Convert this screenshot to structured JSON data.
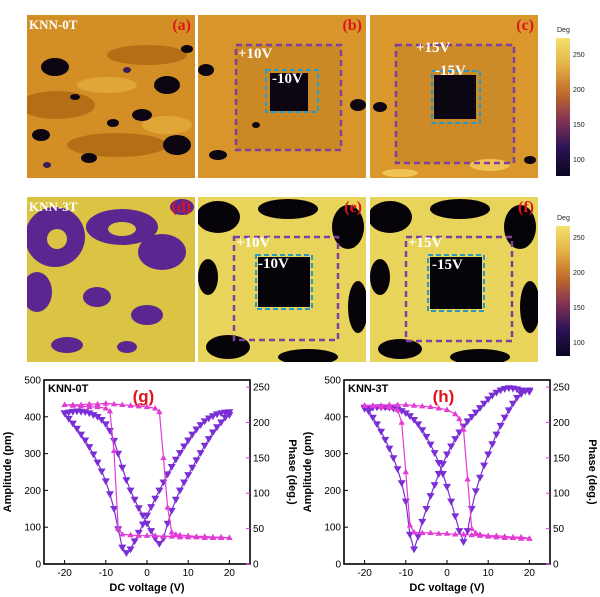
{
  "maps": {
    "rows": [
      {
        "sample": "KNN-0T",
        "panels": [
          {
            "label": "(a)"
          },
          {
            "label": "(b)",
            "outer": "+10V",
            "inner": "-10V"
          },
          {
            "label": "(c)",
            "outer": "+15V",
            "inner": "-15V"
          }
        ]
      },
      {
        "sample": "KNN-3T",
        "panels": [
          {
            "label": "(d)"
          },
          {
            "label": "(e)",
            "outer": "+10V",
            "inner": "-10V"
          },
          {
            "label": "(f)",
            "outer": "+15V",
            "inner": "-15V"
          }
        ]
      }
    ],
    "colorbar": {
      "unit": "Deg",
      "ticks": [
        "250",
        "200",
        "150",
        "100"
      ]
    }
  },
  "chart_data": [
    {
      "type": "line",
      "label": "(g)",
      "annotation": "KNN-0T",
      "xlabel": "DC voltage (V)",
      "ylabel": "Amplitude (pm)",
      "y2label": "Phase (deg.)",
      "xlim": [
        -25,
        25
      ],
      "ylim": [
        0,
        500
      ],
      "y2lim": [
        0,
        260
      ],
      "xticks": [
        "-20",
        "-10",
        "0",
        "10",
        "20"
      ],
      "yticks": [
        "0",
        "100",
        "200",
        "300",
        "400",
        "500"
      ],
      "y2ticks": [
        "0",
        "50",
        "100",
        "150",
        "200",
        "250"
      ],
      "colors": {
        "amplitude": "#7a2fd6",
        "phase": "#e23bd6",
        "label": "#e0141c"
      },
      "series": [
        {
          "axis": "left",
          "marker": "triangle-down",
          "x": [
            -20,
            -19,
            -18,
            -17,
            -16,
            -15,
            -14,
            -13,
            -12,
            -11,
            -10,
            -9,
            -8,
            -7,
            -6,
            -5,
            -4,
            -3,
            -2,
            -1,
            0,
            1,
            2,
            3,
            4,
            5,
            6,
            7,
            8,
            9,
            10,
            11,
            12,
            13,
            14,
            15,
            16,
            17,
            18,
            19,
            20,
            20,
            19,
            18,
            17,
            16,
            15,
            14,
            13,
            12,
            11,
            10,
            9,
            8,
            7,
            6,
            5,
            4,
            3,
            2,
            1,
            0,
            -1,
            -2,
            -3,
            -4,
            -5,
            -6,
            -7,
            -8,
            -9,
            -10,
            -11,
            -12,
            -13,
            -14,
            -15,
            -16,
            -17,
            -18,
            -19,
            -20
          ],
          "y": [
            410,
            395,
            382,
            368,
            352,
            336,
            318,
            298,
            276,
            252,
            225,
            190,
            150,
            95,
            45,
            30,
            40,
            62,
            85,
            108,
            132,
            155,
            178,
            200,
            222,
            244,
            264,
            284,
            302,
            320,
            336,
            352,
            366,
            378,
            388,
            396,
            402,
            407,
            410,
            412,
            413,
            405,
            398,
            385,
            372,
            358,
            340,
            322,
            302,
            282,
            262,
            242,
            222,
            200,
            175,
            145,
            110,
            70,
            55,
            70,
            90,
            110,
            132,
            152,
            175,
            200,
            228,
            262,
            300,
            335,
            362,
            380,
            392,
            400,
            405,
            410,
            413,
            414,
            415,
            414,
            412,
            410
          ]
        },
        {
          "axis": "right",
          "marker": "triangle-up",
          "x": [
            -20,
            -18,
            -16,
            -14,
            -12,
            -10,
            -9,
            -8,
            -7,
            -6,
            -4,
            -2,
            0,
            2,
            4,
            6,
            8,
            10,
            12,
            14,
            16,
            18,
            20,
            20,
            18,
            16,
            14,
            12,
            10,
            8,
            7,
            6,
            5,
            4,
            3,
            2,
            0,
            -2,
            -4,
            -6,
            -8,
            -10,
            -12,
            -14,
            -16,
            -18,
            -20
          ],
          "y": [
            225,
            224,
            223,
            222,
            222,
            220,
            216,
            160,
            50,
            42,
            41,
            40,
            40,
            40,
            39,
            39,
            38,
            38,
            38,
            37,
            37,
            37,
            37,
            37,
            38,
            38,
            39,
            39,
            40,
            41,
            42,
            45,
            80,
            150,
            215,
            220,
            222,
            223,
            224,
            225,
            226,
            227,
            226,
            226,
            225,
            225,
            225
          ]
        }
      ]
    },
    {
      "type": "line",
      "label": "(h)",
      "annotation": "KNN-3T",
      "xlabel": "DC voltage (V)",
      "ylabel": "Amplitude (pm)",
      "y2label": "Phase (deg.)",
      "xlim": [
        -25,
        25
      ],
      "ylim": [
        0,
        500
      ],
      "y2lim": [
        0,
        260
      ],
      "xticks": [
        "-20",
        "-10",
        "0",
        "10",
        "20"
      ],
      "yticks": [
        "0",
        "100",
        "200",
        "300",
        "400",
        "500"
      ],
      "y2ticks": [
        "0",
        "50",
        "100",
        "150",
        "200",
        "250"
      ],
      "colors": {
        "amplitude": "#7a2fd6",
        "phase": "#e23bd6",
        "label": "#e0141c"
      },
      "series": [
        {
          "axis": "left",
          "marker": "triangle-down",
          "x": [
            -20,
            -19,
            -18,
            -17,
            -16,
            -15,
            -14,
            -13,
            -12,
            -11,
            -10,
            -9,
            -8,
            -7,
            -6,
            -5,
            -4,
            -3,
            -2,
            -1,
            0,
            1,
            2,
            3,
            4,
            5,
            6,
            7,
            8,
            9,
            10,
            11,
            12,
            13,
            14,
            15,
            16,
            17,
            18,
            19,
            20,
            20,
            19,
            18,
            17,
            16,
            15,
            14,
            13,
            12,
            11,
            10,
            9,
            8,
            7,
            6,
            5,
            4,
            3,
            2,
            1,
            0,
            -1,
            -2,
            -3,
            -4,
            -5,
            -6,
            -7,
            -8,
            -9,
            -10,
            -11,
            -12,
            -13,
            -14,
            -15,
            -16,
            -17,
            -18,
            -19,
            -20
          ],
          "y": [
            425,
            415,
            398,
            380,
            360,
            338,
            314,
            288,
            258,
            220,
            170,
            80,
            40,
            75,
            115,
            150,
            185,
            215,
            245,
            272,
            298,
            320,
            340,
            358,
            374,
            388,
            400,
            412,
            424,
            436,
            448,
            458,
            466,
            472,
            476,
            478,
            477,
            475,
            472,
            470,
            468,
            472,
            470,
            462,
            452,
            436,
            418,
            398,
            376,
            352,
            326,
            298,
            268,
            235,
            198,
            150,
            90,
            60,
            90,
            130,
            170,
            210,
            245,
            275,
            302,
            325,
            346,
            364,
            380,
            392,
            402,
            410,
            416,
            420,
            423,
            425,
            426,
            426,
            426,
            425,
            424,
            422
          ]
        },
        {
          "axis": "right",
          "marker": "triangle-up",
          "x": [
            -20,
            -18,
            -16,
            -14,
            -12,
            -11,
            -10,
            -9,
            -8,
            -6,
            -4,
            -2,
            0,
            2,
            4,
            6,
            8,
            10,
            12,
            14,
            16,
            18,
            20,
            20,
            18,
            16,
            14,
            12,
            10,
            8,
            7,
            6,
            5,
            4,
            3,
            2,
            0,
            -2,
            -4,
            -6,
            -8,
            -10,
            -12,
            -14,
            -16,
            -18,
            -20
          ],
          "y": [
            224,
            223,
            222,
            221,
            218,
            200,
            130,
            55,
            45,
            44,
            44,
            43,
            43,
            42,
            42,
            41,
            40,
            39,
            38,
            37,
            37,
            36,
            36,
            36,
            38,
            38,
            39,
            40,
            40,
            42,
            44,
            50,
            120,
            190,
            205,
            212,
            218,
            220,
            222,
            223,
            224,
            225,
            225,
            225,
            224,
            224,
            224
          ]
        }
      ]
    }
  ]
}
